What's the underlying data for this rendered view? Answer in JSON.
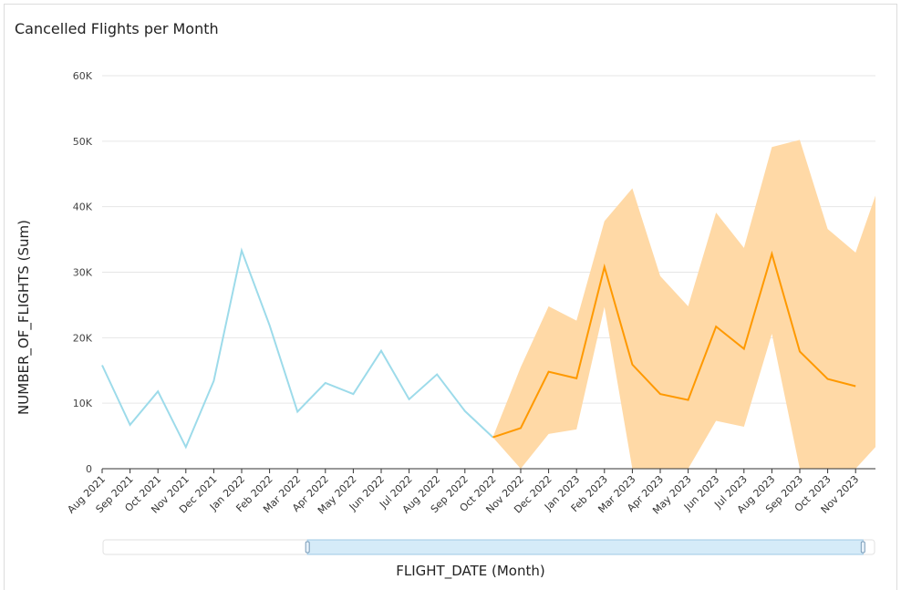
{
  "chart_data": {
    "type": "line",
    "title": "Cancelled Flights per Month",
    "xlabel": "FLIGHT_DATE (Month)",
    "ylabel": "NUMBER_OF_FLIGHTS (Sum)",
    "ylim": [
      0,
      60000
    ],
    "yticks": [
      0,
      10000,
      20000,
      30000,
      40000,
      50000,
      60000
    ],
    "ytick_labels": [
      "0",
      "10K",
      "20K",
      "30K",
      "40K",
      "50K",
      "60K"
    ],
    "grid": true,
    "categories": [
      "Aug 2021",
      "Sep 2021",
      "Oct 2021",
      "Nov 2021",
      "Dec 2021",
      "Jan 2022",
      "Feb 2022",
      "Mar 2022",
      "Apr 2022",
      "May 2022",
      "Jun 2022",
      "Jul 2022",
      "Aug 2022",
      "Sep 2022",
      "Oct 2022",
      "Nov 2022",
      "Dec 2022",
      "Jan 2023",
      "Feb 2023",
      "Mar 2023",
      "Apr 2023",
      "May 2023",
      "Jun 2023",
      "Jul 2023",
      "Aug 2023",
      "Sep 2023",
      "Oct 2023",
      "Nov 2023"
    ],
    "series": [
      {
        "role": "actual",
        "color": "#9ddbea",
        "values": [
          15800,
          6700,
          11800,
          3300,
          13400,
          33300,
          21900,
          8700,
          13100,
          11400,
          18000,
          10600,
          14400,
          8800,
          4800,
          null,
          null,
          null,
          null,
          null,
          null,
          null,
          null,
          null,
          null,
          null,
          null,
          null
        ]
      },
      {
        "role": "forecast",
        "color": "#ff9900",
        "values": [
          null,
          null,
          null,
          null,
          null,
          null,
          null,
          null,
          null,
          null,
          null,
          null,
          null,
          null,
          4800,
          6200,
          14800,
          13800,
          30800,
          15900,
          11400,
          10500,
          21700,
          18300,
          32800,
          17900,
          13700,
          12600
        ]
      },
      {
        "role": "forecast-band",
        "color": "#ffd9a6",
        "upper": [
          null,
          null,
          null,
          null,
          null,
          null,
          null,
          null,
          null,
          null,
          null,
          null,
          null,
          null,
          4800,
          15500,
          24800,
          22600,
          37800,
          42800,
          29400,
          24800,
          39100,
          33700,
          49100,
          50200,
          36600,
          33000
        ],
        "lower": [
          null,
          null,
          null,
          null,
          null,
          null,
          null,
          null,
          null,
          null,
          null,
          null,
          null,
          null,
          4800,
          0,
          5300,
          6000,
          24700,
          0,
          0,
          0,
          7300,
          6400,
          20600,
          0,
          0,
          0
        ],
        "edge_upper": 41700,
        "edge_lower": 3300
      }
    ]
  },
  "range_slider": {
    "start_fraction": 0.265,
    "end_fraction": 0.985
  }
}
